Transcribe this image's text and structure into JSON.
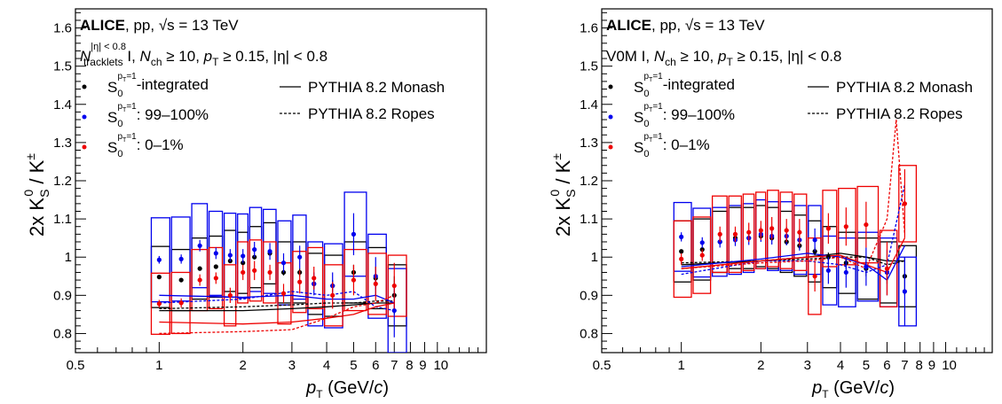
{
  "chart_data": [
    {
      "type": "scatter",
      "panel": "left",
      "ylabel": "2x K_S^0 / K^±",
      "xlabel": "p_T (GeV/c)",
      "xscale": "log",
      "xlim": [
        0.5,
        15
      ],
      "ylim": [
        0.75,
        1.65
      ],
      "xticks": [
        0.5,
        1,
        2,
        3,
        4,
        5,
        6,
        7,
        8,
        9,
        10
      ],
      "xtick_labels": [
        "0.5",
        "1",
        "2",
        "3",
        "4",
        "5",
        "6",
        "7",
        "8",
        "9",
        "10"
      ],
      "yticks": [
        0.8,
        0.9,
        1,
        1.1,
        1.2,
        1.3,
        1.4,
        1.5,
        1.6
      ],
      "ytick_labels": [
        "0.8",
        "0.9",
        "1",
        "1.1",
        "1.2",
        "1.3",
        "1.4",
        "1.5",
        "1.6"
      ],
      "header": {
        "experiment": "ALICE",
        "system": ", pp, ",
        "energy": "√s = 13 TeV"
      },
      "selection": "N_tracklets^{|η| < 0.8} I, N_ch ≥ 10, p_T ≥ 0.15, |η| < 0.8",
      "legend_data": [
        {
          "label": "S_0^{p_T=1}-integrated",
          "color": "#000000"
        },
        {
          "label": "S_0^{p_T=1}: 99–100%",
          "color": "#0000ee"
        },
        {
          "label": "S_0^{p_T=1}: 0–1%",
          "color": "#ee0000"
        }
      ],
      "legend_models": [
        {
          "label": "PYTHIA 8.2 Monash",
          "style": "solid"
        },
        {
          "label": "PYTHIA 8.2 Ropes",
          "style": "dashed"
        }
      ],
      "series": [
        {
          "name": "S_0^{p_T=1}-integrated",
          "color": "#000000",
          "x": [
            1.0,
            1.2,
            1.4,
            1.6,
            1.8,
            2.0,
            2.2,
            2.5,
            2.8,
            3.2,
            3.6,
            4.2,
            5.0,
            6.0,
            7.0
          ],
          "y": [
            0.948,
            0.94,
            0.97,
            0.975,
            0.99,
            0.985,
            1.0,
            1.01,
            0.96,
            0.96,
            0.93,
            0.925,
            0.96,
            0.945,
            0.9
          ],
          "stat": [
            0.005,
            0.005,
            0.005,
            0.005,
            0.005,
            0.006,
            0.006,
            0.007,
            0.008,
            0.01,
            0.012,
            0.015,
            0.02,
            0.03,
            0.05
          ],
          "syst": [
            0.08,
            0.08,
            0.08,
            0.08,
            0.08,
            0.08,
            0.08,
            0.08,
            0.08,
            0.08,
            0.08,
            0.08,
            0.08,
            0.08,
            0.08
          ]
        },
        {
          "name": "S_0^{p_T=1}: 99–100%",
          "color": "#0000ee",
          "x": [
            1.0,
            1.2,
            1.4,
            1.6,
            1.8,
            2.0,
            2.2,
            2.5,
            2.8,
            3.2,
            3.6,
            4.2,
            5.0,
            6.0,
            7.0
          ],
          "y": [
            0.993,
            0.995,
            1.03,
            1.01,
            1.005,
            1.003,
            1.02,
            1.015,
            0.985,
            1.0,
            0.93,
            0.925,
            1.06,
            0.95,
            0.86
          ],
          "stat": [
            0.01,
            0.012,
            0.015,
            0.015,
            0.016,
            0.018,
            0.02,
            0.022,
            0.025,
            0.03,
            0.03,
            0.035,
            0.055,
            0.05,
            0.07
          ],
          "syst": [
            0.11,
            0.11,
            0.11,
            0.11,
            0.11,
            0.11,
            0.11,
            0.11,
            0.11,
            0.11,
            0.11,
            0.11,
            0.11,
            0.11,
            0.11
          ]
        },
        {
          "name": "S_0^{p_T=1}: 0–1%",
          "color": "#ee0000",
          "x": [
            1.0,
            1.2,
            1.4,
            1.6,
            1.8,
            2.0,
            2.2,
            2.5,
            2.8,
            3.2,
            3.6,
            4.2,
            5.0,
            6.0,
            7.0
          ],
          "y": [
            0.878,
            0.88,
            0.94,
            0.945,
            0.9,
            0.96,
            0.965,
            0.96,
            0.905,
            0.935,
            0.945,
            0.9,
            0.94,
            0.93,
            0.925
          ],
          "stat": [
            0.01,
            0.012,
            0.015,
            0.015,
            0.02,
            0.02,
            0.025,
            0.02,
            0.025,
            0.03,
            0.03,
            0.035,
            0.04,
            0.045,
            0.06
          ],
          "syst": [
            0.08,
            0.08,
            0.08,
            0.08,
            0.08,
            0.08,
            0.08,
            0.08,
            0.08,
            0.08,
            0.08,
            0.08,
            0.08,
            0.08,
            0.08
          ]
        }
      ],
      "models": [
        {
          "name": "PYTHIA 8.2 Monash",
          "color": "#000000",
          "style": "solid",
          "x": [
            1,
            2,
            3,
            4,
            5,
            6,
            7
          ],
          "y": [
            0.86,
            0.86,
            0.865,
            0.87,
            0.875,
            0.88,
            0.88
          ]
        },
        {
          "name": "PYTHIA 8.2 Ropes",
          "color": "#000000",
          "style": "dashed",
          "x": [
            1,
            2,
            3,
            4,
            5,
            6,
            7
          ],
          "y": [
            0.865,
            0.87,
            0.875,
            0.88,
            0.88,
            0.885,
            0.885
          ]
        },
        {
          "name": "PYTHIA 8.2 Monash",
          "color": "#0000ee",
          "style": "solid",
          "x": [
            1,
            2,
            3,
            4,
            5,
            6,
            7
          ],
          "y": [
            0.9,
            0.895,
            0.9,
            0.89,
            0.89,
            0.9,
            0.88
          ]
        },
        {
          "name": "PYTHIA 8.2 Ropes",
          "color": "#0000ee",
          "style": "dashed",
          "x": [
            1,
            2,
            3,
            4,
            5,
            6,
            7
          ],
          "y": [
            0.88,
            0.89,
            0.91,
            0.9,
            0.91,
            0.87,
            0.86
          ]
        },
        {
          "name": "PYTHIA 8.2 Monash",
          "color": "#ee0000",
          "style": "solid",
          "x": [
            1,
            2,
            3,
            4,
            5,
            6,
            7
          ],
          "y": [
            0.83,
            0.825,
            0.83,
            0.84,
            0.85,
            0.87,
            0.88
          ]
        },
        {
          "name": "PYTHIA 8.2 Ropes",
          "color": "#ee0000",
          "style": "dashed",
          "x": [
            1,
            2,
            3,
            4,
            5,
            6,
            7
          ],
          "y": [
            0.8,
            0.805,
            0.81,
            0.84,
            0.87,
            0.88,
            0.9
          ]
        }
      ]
    },
    {
      "type": "scatter",
      "panel": "right",
      "ylabel": "2x K_S^0 / K^±",
      "xlabel": "p_T (GeV/c)",
      "xscale": "log",
      "xlim": [
        0.5,
        15
      ],
      "ylim": [
        0.75,
        1.65
      ],
      "xticks": [
        0.5,
        1,
        2,
        3,
        4,
        5,
        6,
        7,
        8,
        9,
        10
      ],
      "xtick_labels": [
        "0.5",
        "1",
        "2",
        "3",
        "4",
        "5",
        "6",
        "7",
        "8",
        "9",
        "10"
      ],
      "yticks": [
        0.8,
        0.9,
        1,
        1.1,
        1.2,
        1.3,
        1.4,
        1.5,
        1.6
      ],
      "ytick_labels": [
        "0.8",
        "0.9",
        "1",
        "1.1",
        "1.2",
        "1.3",
        "1.4",
        "1.5",
        "1.6"
      ],
      "header": {
        "experiment": "ALICE",
        "system": ", pp, ",
        "energy": "√s = 13 TeV"
      },
      "selection": "V0M I, N_ch ≥ 10, p_T ≥ 0.15, |η| < 0.8",
      "legend_data": [
        {
          "label": "S_0^{p_T=1}-integrated",
          "color": "#000000"
        },
        {
          "label": "S_0^{p_T=1}: 99–100%",
          "color": "#0000ee"
        },
        {
          "label": "S_0^{p_T=1}: 0–1%",
          "color": "#ee0000"
        }
      ],
      "legend_models": [
        {
          "label": "PYTHIA 8.2 Monash",
          "style": "solid"
        },
        {
          "label": "PYTHIA 8.2 Ropes",
          "style": "dashed"
        }
      ],
      "series": [
        {
          "name": "S_0^{p_T=1}-integrated",
          "color": "#000000",
          "x": [
            1.0,
            1.2,
            1.4,
            1.6,
            1.8,
            2.0,
            2.2,
            2.5,
            2.8,
            3.2,
            3.6,
            4.2,
            5.0,
            6.0,
            7.0
          ],
          "y": [
            1.015,
            1.02,
            1.04,
            1.05,
            1.05,
            1.055,
            1.05,
            1.04,
            1.03,
            1.015,
            1.0,
            0.985,
            0.97,
            0.96,
            0.95
          ],
          "stat": [
            0.005,
            0.005,
            0.005,
            0.005,
            0.006,
            0.006,
            0.007,
            0.008,
            0.009,
            0.01,
            0.012,
            0.015,
            0.02,
            0.03,
            0.05
          ],
          "syst": [
            0.08,
            0.08,
            0.08,
            0.08,
            0.08,
            0.08,
            0.08,
            0.08,
            0.08,
            0.08,
            0.08,
            0.08,
            0.08,
            0.08,
            0.08
          ]
        },
        {
          "name": "S_0^{p_T=1}: 99–100%",
          "color": "#0000ee",
          "x": [
            1.0,
            1.2,
            1.4,
            1.6,
            1.8,
            2.0,
            2.2,
            2.5,
            2.8,
            3.2,
            3.6,
            4.2,
            5.0,
            6.0,
            7.0
          ],
          "y": [
            1.053,
            1.038,
            1.04,
            1.045,
            1.05,
            1.06,
            1.055,
            1.055,
            1.045,
            1.045,
            0.965,
            0.96,
            0.975,
            0.96,
            0.91
          ],
          "stat": [
            0.012,
            0.014,
            0.015,
            0.016,
            0.018,
            0.02,
            0.022,
            0.024,
            0.028,
            0.03,
            0.035,
            0.04,
            0.05,
            0.06,
            0.09
          ],
          "syst": [
            0.09,
            0.09,
            0.09,
            0.09,
            0.09,
            0.09,
            0.09,
            0.09,
            0.09,
            0.09,
            0.09,
            0.09,
            0.09,
            0.09,
            0.09
          ]
        },
        {
          "name": "S_0^{p_T=1}: 0–1%",
          "color": "#ee0000",
          "x": [
            1.0,
            1.2,
            1.4,
            1.6,
            1.8,
            2.0,
            2.2,
            2.5,
            2.8,
            3.2,
            3.6,
            4.2,
            5.0,
            6.0,
            7.0
          ],
          "y": [
            0.995,
            1.005,
            1.06,
            1.06,
            1.065,
            1.07,
            1.075,
            1.07,
            1.065,
            0.95,
            1.075,
            1.08,
            1.085,
            0.97,
            1.14
          ],
          "stat": [
            0.015,
            0.015,
            0.02,
            0.02,
            0.025,
            0.025,
            0.03,
            0.03,
            0.035,
            0.04,
            0.04,
            0.05,
            0.06,
            0.07,
            0.09
          ],
          "syst": [
            0.1,
            0.1,
            0.1,
            0.1,
            0.1,
            0.1,
            0.1,
            0.1,
            0.1,
            0.1,
            0.1,
            0.1,
            0.1,
            0.1,
            0.1
          ]
        }
      ],
      "models": [
        {
          "name": "PYTHIA 8.2 Monash",
          "color": "#000000",
          "style": "solid",
          "x": [
            1,
            2,
            3,
            4,
            5,
            6,
            7
          ],
          "y": [
            0.98,
            0.99,
            1.0,
            1.01,
            1.0,
            0.99,
            0.99
          ]
        },
        {
          "name": "PYTHIA 8.2 Ropes",
          "color": "#000000",
          "style": "dashed",
          "x": [
            1,
            2,
            3,
            4,
            5,
            6,
            7
          ],
          "y": [
            0.985,
            0.99,
            0.995,
            1.0,
            1.0,
            0.98,
            0.99
          ]
        },
        {
          "name": "PYTHIA 8.2 Monash",
          "color": "#0000ee",
          "style": "solid",
          "x": [
            1,
            2,
            3,
            4,
            5,
            6,
            7
          ],
          "y": [
            0.975,
            0.995,
            1.01,
            1.0,
            0.98,
            0.94,
            1.03
          ]
        },
        {
          "name": "PYTHIA 8.2 Ropes",
          "color": "#0000ee",
          "style": "dashed",
          "x": [
            1,
            2,
            3,
            4,
            5,
            6,
            7
          ],
          "y": [
            0.955,
            0.99,
            0.99,
            0.98,
            0.96,
            0.98,
            1.19
          ]
        },
        {
          "name": "PYTHIA 8.2 Monash",
          "color": "#ee0000",
          "style": "solid",
          "x": [
            1,
            2,
            3,
            4,
            5,
            6,
            7
          ],
          "y": [
            0.97,
            0.99,
            1.0,
            1.005,
            0.98,
            0.96,
            1.05
          ]
        },
        {
          "name": "PYTHIA 8.2 Ropes",
          "color": "#ee0000",
          "style": "dashed",
          "x": [
            1,
            2,
            3,
            4,
            5,
            6,
            6.5,
            7
          ],
          "y": [
            0.97,
            0.985,
            0.99,
            1.0,
            0.97,
            1.1,
            1.36,
            1.06
          ]
        }
      ]
    }
  ]
}
